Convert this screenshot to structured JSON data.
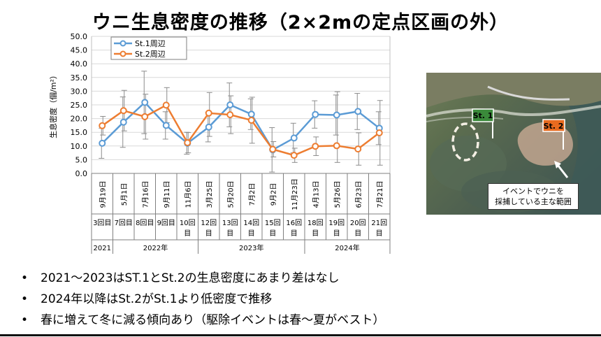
{
  "page_title": "ウニ生息密度の推移（2×2mの定点区画の外）",
  "chart_data": {
    "type": "line",
    "title": "",
    "xlabel": "",
    "ylabel": "生息密度（個/m²）",
    "ylim": [
      0,
      50
    ],
    "yticks": [
      "0.0",
      "5.0",
      "10.0",
      "15.0",
      "20.0",
      "25.0",
      "30.0",
      "35.0",
      "40.0",
      "45.0",
      "50.0"
    ],
    "grid": true,
    "legend_position": "top-left",
    "categories": [
      "9月19日",
      "5月1日",
      "7月16日",
      "9月11日",
      "11月6日",
      "3月25日",
      "5月20日",
      "7月2日",
      "9月2日",
      "11月23日",
      "4月13日",
      "5月26日",
      "6月23日",
      "7月21日"
    ],
    "rounds": [
      "3回目",
      "7回目",
      "8回目",
      "9回目",
      "10回目",
      "12回目",
      "13回目",
      "14回目",
      "15回目",
      "16回目",
      "18回目",
      "19回目",
      "20回目",
      "21回目"
    ],
    "years": [
      {
        "label": "2021",
        "from": 0,
        "to": 0
      },
      {
        "label": "2022年",
        "from": 1,
        "to": 4
      },
      {
        "label": "2023年",
        "from": 5,
        "to": 9
      },
      {
        "label": "2024年",
        "from": 10,
        "to": 13
      }
    ],
    "series": [
      {
        "name": "St.1周辺",
        "color": "#5b9bd5",
        "values": [
          11.0,
          18.7,
          25.9,
          17.5,
          11.0,
          16.9,
          25.0,
          21.6,
          8.6,
          12.9,
          21.5,
          21.3,
          22.6,
          16.5
        ],
        "err_low": [
          5.5,
          9.5,
          14.5,
          12.5,
          7.0,
          11.5,
          17.0,
          16.0,
          0.5,
          7.5,
          16.5,
          14.0,
          16.0,
          10.5
        ],
        "err_high": [
          16.5,
          27.9,
          37.3,
          22.5,
          15.0,
          22.3,
          33.0,
          27.2,
          16.7,
          18.3,
          26.5,
          28.6,
          29.2,
          22.5
        ]
      },
      {
        "name": "St.2周辺",
        "color": "#ed7d31",
        "values": [
          17.4,
          22.9,
          20.7,
          24.9,
          11.2,
          22.0,
          21.4,
          19.4,
          8.8,
          6.6,
          9.9,
          10.1,
          8.9,
          14.8
        ],
        "err_low": [
          14.0,
          15.5,
          12.5,
          18.5,
          7.5,
          13.5,
          14.5,
          11.0,
          6.0,
          4.0,
          6.5,
          4.0,
          3.0,
          3.0
        ],
        "err_high": [
          20.8,
          30.3,
          28.9,
          31.3,
          14.9,
          29.5,
          28.3,
          27.8,
          11.6,
          9.2,
          13.3,
          29.8,
          14.8,
          26.6
        ]
      }
    ]
  },
  "map": {
    "st1_label": "St. 1",
    "st2_label": "St. 2",
    "st1_color": "#3a8a3a",
    "st2_color": "#e86b1f",
    "callout_line1": "イベントでウニを",
    "callout_line2": "採捕している主な範囲"
  },
  "bullets": [
    "2021～2023はST.1とSt.2の生息密度にあまり差はなし",
    "2024年以降はSt.2がSt.1より低密度で推移",
    "春に増えて冬に減る傾向あり（駆除イベントは春～夏がベスト）"
  ]
}
